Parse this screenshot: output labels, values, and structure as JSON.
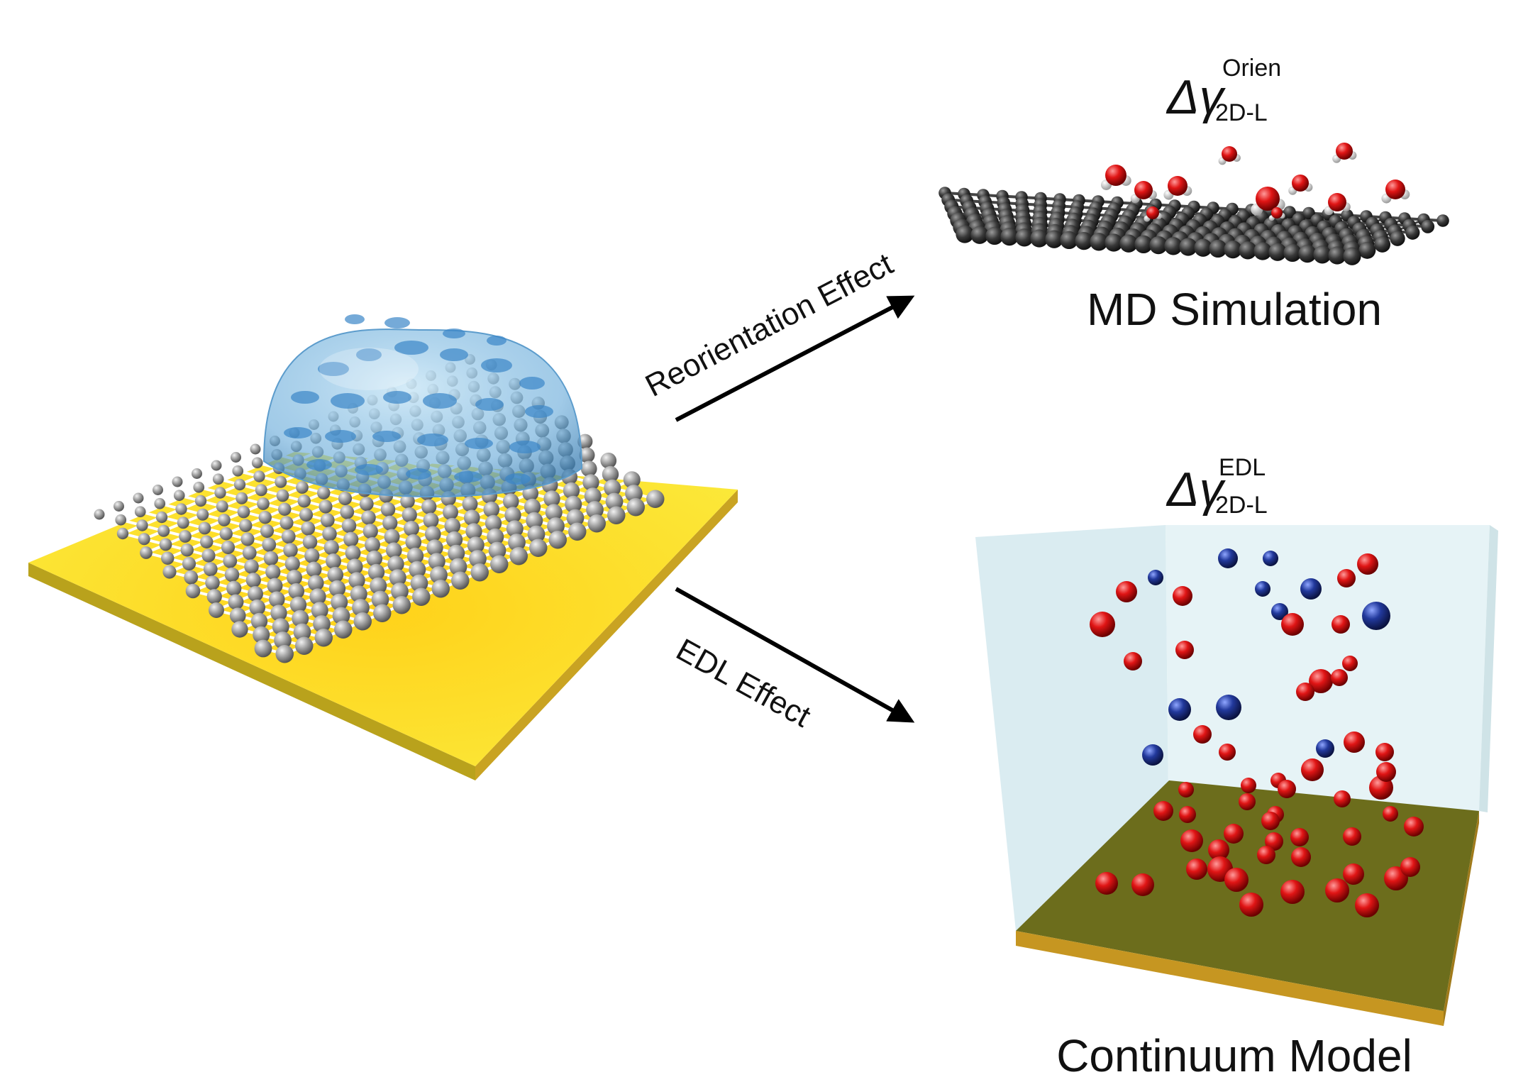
{
  "arrows": {
    "top_label": "Reorientation Effect",
    "bottom_label": "EDL Effect"
  },
  "md_panel": {
    "symbol": "Δγ",
    "subscript": "2D-L",
    "superscript": "Orien",
    "caption": "MD Simulation"
  },
  "continuum_panel": {
    "symbol": "Δγ",
    "subscript": "2D-L",
    "superscript": "EDL",
    "caption": "Continuum Model"
  },
  "colors": {
    "substrate": "#f7dc2a",
    "carbon_atom": "#9a9a9a",
    "droplet": "#8fc4e6",
    "oxygen": "#e01515",
    "hydrogen": "#e8e8e8",
    "md_carbon": "#3a3a3a",
    "cation": "#d0151f",
    "anion": "#1f3a9e",
    "box": "#d9ecef",
    "box_floor": "#6b6b1f",
    "box_edge": "#b98a1d"
  }
}
